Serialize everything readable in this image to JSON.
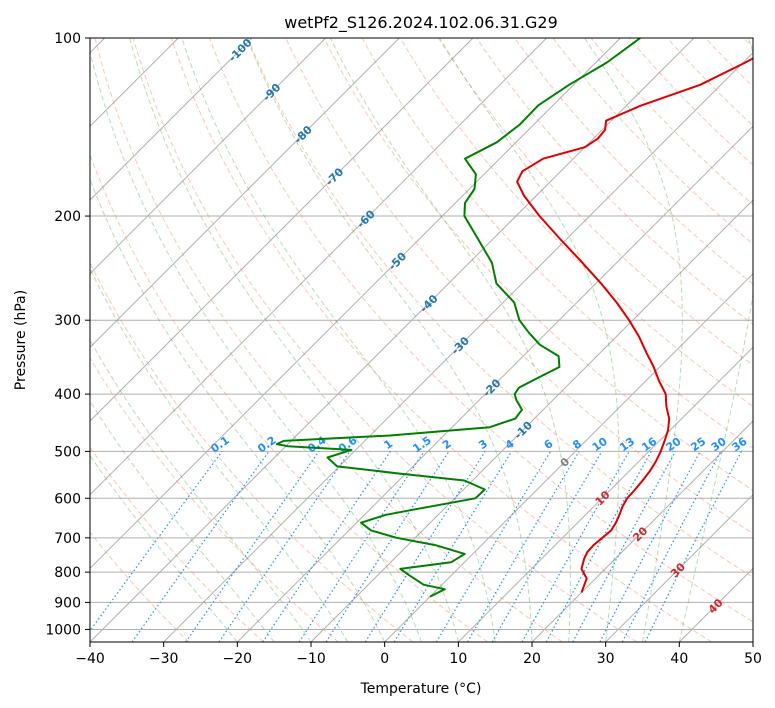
{
  "chart_data": {
    "type": "line",
    "diagram": "skew-T log-P",
    "title": "wetPf2_S126.2024.102.06.31.G29",
    "xlabel": "Temperature (°C)",
    "ylabel": "Pressure (hPa)",
    "xlim": [
      -40,
      50
    ],
    "ylim": [
      1050,
      100
    ],
    "y_scale": "log",
    "x_ticks": [
      -40,
      -30,
      -20,
      -10,
      0,
      10,
      20,
      30,
      40,
      50
    ],
    "y_ticks": [
      100,
      200,
      300,
      400,
      500,
      600,
      700,
      800,
      900,
      1000
    ],
    "grid": true,
    "series": [
      {
        "color": "#e00000",
        "pressure": [
          866,
          850,
          820,
          790,
          760,
          740,
          720,
          700,
          680,
          660,
          640,
          620,
          600,
          580,
          560,
          540,
          520,
          500,
          480,
          460,
          440,
          420,
          400,
          380,
          360,
          340,
          320,
          300,
          280,
          260,
          240,
          220,
          200,
          185,
          175,
          168,
          160,
          153,
          148,
          143,
          138,
          130,
          120,
          110,
          100
        ],
        "values": [
          20.0,
          19.6,
          18.8,
          16.8,
          15.8,
          15.3,
          15.2,
          15.4,
          15.6,
          15.2,
          14.6,
          13.9,
          13.4,
          13.3,
          13.1,
          12.8,
          12.3,
          11.6,
          10.7,
          9.7,
          8.3,
          6.3,
          4.5,
          1.8,
          -0.8,
          -3.8,
          -6.9,
          -10.5,
          -14.6,
          -19.3,
          -24.6,
          -30.5,
          -36.8,
          -41.6,
          -44.5,
          -45.2,
          -44.1,
          -40.0,
          -39.4,
          -39.6,
          -40.7,
          -38.0,
          -32.8,
          -29.7,
          -26.9
        ]
      },
      {
        "color": "#008000",
        "pressure": [
          880,
          855,
          840,
          810,
          790,
          770,
          745,
          720,
          700,
          680,
          660,
          640,
          625,
          600,
          580,
          560,
          545,
          530,
          512,
          497,
          490,
          486,
          480,
          470,
          455,
          440,
          425,
          410,
          400,
          390,
          375,
          360,
          345,
          330,
          315,
          300,
          280,
          260,
          240,
          220,
          200,
          190,
          180,
          170,
          160,
          150,
          140,
          130,
          120,
          110,
          100
        ],
        "values": [
          0.0,
          1.0,
          -2.5,
          -5.7,
          -7.8,
          -1.8,
          -1.1,
          -6.3,
          -12.5,
          -17.0,
          -19.4,
          -17.1,
          -13.5,
          -7.2,
          -7.1,
          -11.1,
          -20.8,
          -30.3,
          -32.8,
          -30.6,
          -39.7,
          -41.5,
          -41.0,
          -27.3,
          -14.9,
          -12.6,
          -12.9,
          -14.9,
          -16.0,
          -16.3,
          -15.0,
          -13.6,
          -15.2,
          -19.3,
          -22.4,
          -25.4,
          -28.5,
          -33.5,
          -36.9,
          -41.7,
          -47.0,
          -48.7,
          -49.3,
          -51.1,
          -54.7,
          -52.6,
          -51.9,
          -52.0,
          -50.6,
          -48.5,
          -47.3
        ]
      }
    ],
    "isotherm_labels": [
      "-100",
      "-90",
      "-80",
      "-70",
      "-60",
      "-50",
      "-40",
      "-30",
      "-20",
      "-10",
      "0",
      "10",
      "20",
      "30",
      "40"
    ],
    "mixing_ratio_labels": [
      "0.1",
      "0.2",
      "0.4",
      "0.6",
      "1",
      "1.5",
      "2",
      "3",
      "4",
      "6",
      "8",
      "10",
      "13",
      "16",
      "20",
      "25",
      "30",
      "36"
    ],
    "colors": {
      "temperature": "#e00000",
      "dewpoint": "#008000",
      "isotherm_label_negative": "#1f77b4",
      "isotherm_label_zero": "#808080",
      "isotherm_label_positive": "#d62728",
      "mixing_ratio": "#1e90ff",
      "dry_adiabat": "#ff7f50",
      "moist_adiabat": "#2ca02c",
      "grid": "#b0b0b0"
    }
  }
}
